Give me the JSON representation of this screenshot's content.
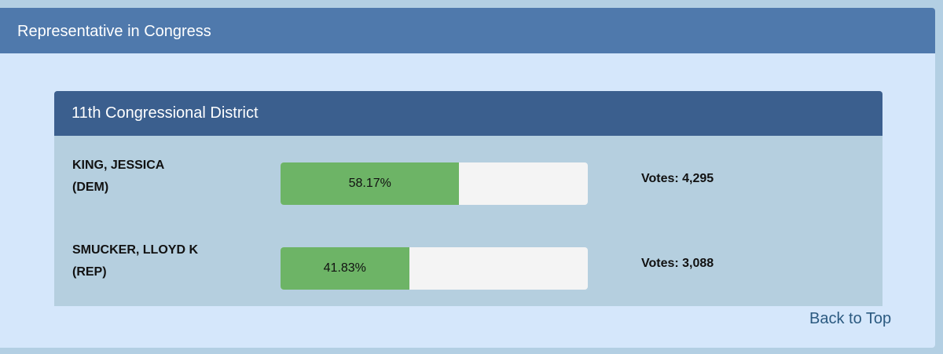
{
  "section": {
    "title": "Representative in Congress"
  },
  "contest": {
    "title": "11th Congressional District",
    "candidates": [
      {
        "name": "KING, JESSICA",
        "party": "(DEM)",
        "percent": 58.17,
        "percent_label": "58.17%",
        "votes": "Votes: 4,295"
      },
      {
        "name": "SMUCKER, LLOYD K",
        "party": "(REP)",
        "percent": 41.83,
        "percent_label": "41.83%",
        "votes": "Votes: 3,088"
      }
    ]
  },
  "links": {
    "back_to_top": "Back to Top"
  }
}
